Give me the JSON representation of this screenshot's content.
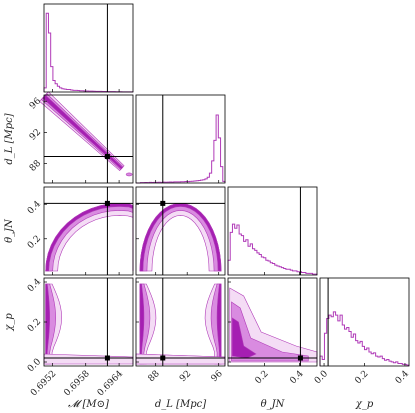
{
  "chart_data": {
    "type": "corner",
    "color": "#b03bb8",
    "fill_levels": [
      "#f4dcf5",
      "#d98be0",
      "#a51fb2"
    ],
    "truth_line_color": "#000000",
    "params": [
      {
        "label": "𝓜 [M⊙]",
        "range": [
          0.69505,
          0.69665
        ],
        "ticks": [
          0.6952,
          0.6958,
          0.6964
        ],
        "tick_labels": [
          "0.6952",
          "0.6958",
          "0.6964"
        ],
        "truth": 0.69619
      },
      {
        "label": "d_L [Mpc]",
        "range": [
          85.5,
          96.8
        ],
        "ticks": [
          88,
          92,
          96
        ],
        "tick_labels": [
          "88",
          "92",
          "96"
        ],
        "truth": 88.9
      },
      {
        "label": "θ_JN",
        "range": [
          -0.01,
          0.5
        ],
        "ticks": [
          0.2,
          0.4
        ],
        "tick_labels": [
          "0.2",
          "0.4"
        ],
        "truth": 0.405
      },
      {
        "label": "χ_p",
        "range": [
          -0.02,
          0.42
        ],
        "ticks": [
          0.0,
          0.2,
          0.4
        ],
        "tick_labels": [
          "0.0",
          "0.2",
          "0.4"
        ],
        "truth": 0.02
      }
    ],
    "histograms": [
      {
        "param": 0,
        "bins": [
          0.69506,
          0.69512
        ],
        "heights": [
          0.05,
          0.96,
          0.72,
          0.31,
          0.14,
          0.1,
          0.07,
          0.05,
          0.04,
          0.035,
          0.03,
          0.03,
          0.025,
          0.02,
          0.02,
          0.018,
          0.015,
          0.015,
          0.012,
          0.012,
          0.01,
          0.01,
          0.009,
          0.008,
          0.008,
          0.007,
          0.006,
          0.006,
          0.005,
          0.005,
          0.004,
          0.004,
          0.003,
          0.003,
          0.003,
          0.002,
          0.002,
          0.002,
          0.001,
          0.001
        ]
      },
      {
        "param": 1,
        "bins": [
          85.5,
          96.8
        ],
        "heights": [
          0.0,
          0.0,
          0.005,
          0.005,
          0.006,
          0.005,
          0.007,
          0.006,
          0.008,
          0.007,
          0.009,
          0.008,
          0.01,
          0.009,
          0.011,
          0.012,
          0.011,
          0.013,
          0.014,
          0.013,
          0.015,
          0.016,
          0.018,
          0.017,
          0.02,
          0.022,
          0.025,
          0.028,
          0.03,
          0.035,
          0.04,
          0.05,
          0.07,
          0.12,
          0.27,
          0.52,
          0.83,
          0.55,
          0.2,
          0.02
        ]
      },
      {
        "param": 2,
        "bins": [
          -0.01,
          0.5
        ],
        "heights": [
          0.18,
          0.52,
          0.62,
          0.57,
          0.61,
          0.5,
          0.48,
          0.41,
          0.43,
          0.35,
          0.38,
          0.32,
          0.3,
          0.27,
          0.25,
          0.22,
          0.21,
          0.18,
          0.17,
          0.15,
          0.14,
          0.12,
          0.11,
          0.1,
          0.09,
          0.08,
          0.07,
          0.07,
          0.06,
          0.05,
          0.05,
          0.04,
          0.04,
          0.03,
          0.03,
          0.02,
          0.02,
          0.02,
          0.01,
          0.01
        ]
      },
      {
        "param": 3,
        "bins": [
          -0.02,
          0.42
        ],
        "heights": [
          0.12,
          0.08,
          0.4,
          0.58,
          0.62,
          0.6,
          0.66,
          0.62,
          0.55,
          0.62,
          0.5,
          0.45,
          0.47,
          0.42,
          0.35,
          0.39,
          0.31,
          0.28,
          0.3,
          0.24,
          0.2,
          0.22,
          0.17,
          0.15,
          0.16,
          0.12,
          0.11,
          0.12,
          0.09,
          0.07,
          0.08,
          0.06,
          0.05,
          0.04,
          0.05,
          0.03,
          0.03,
          0.02,
          0.02,
          0.01
        ]
      }
    ],
    "contours": [
      {
        "x": 0,
        "y": 1,
        "shape": "diagonal-band",
        "from": [
          0.69508,
          96.2
        ],
        "to": [
          0.69628,
          88.7
        ],
        "tail": [
          0.69645,
          87.6
        ]
      },
      {
        "x": 0,
        "y": 2,
        "shape": "arc",
        "left_edge": 0.69508,
        "top": 0.405
      },
      {
        "x": 0,
        "y": 3,
        "shape": "column-left",
        "edge": 0.69508
      },
      {
        "x": 1,
        "y": 2,
        "shape": "arc",
        "left_edge": 86.0,
        "right_edge": 96.3,
        "top": 0.405
      },
      {
        "x": 1,
        "y": 3,
        "shape": "two-columns",
        "left_edge": 86.0,
        "right_edge": 96.3
      },
      {
        "x": 2,
        "y": 3,
        "shape": "l-blob",
        "peak": [
          0.02,
          0.15
        ]
      }
    ]
  }
}
